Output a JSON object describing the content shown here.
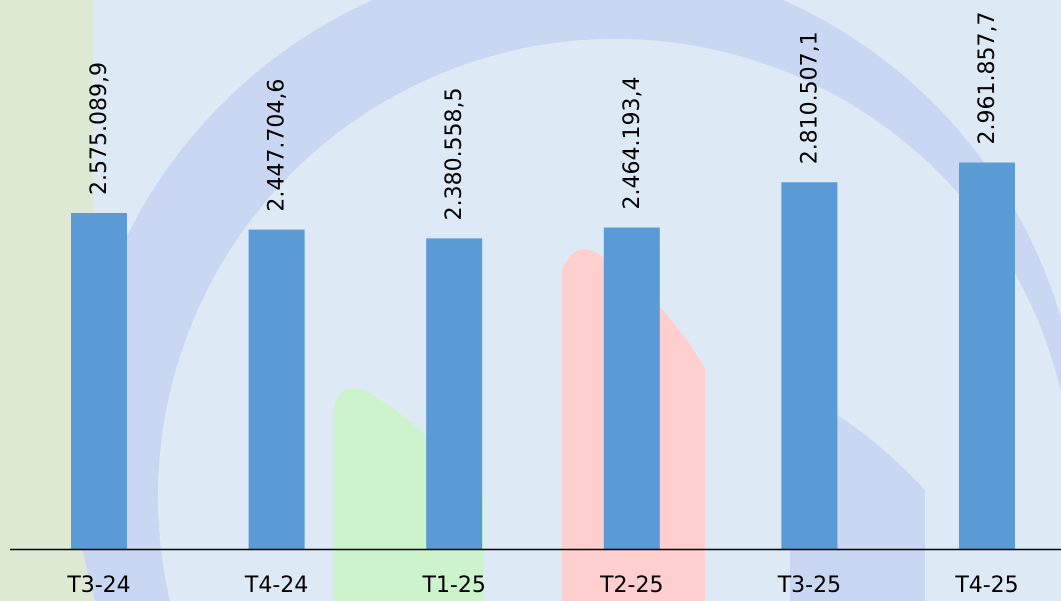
{
  "chart_data": {
    "type": "bar",
    "categories": [
      "T3-24",
      "T4-24",
      "T1-25",
      "T2-25",
      "T3-25",
      "T4-25"
    ],
    "values": [
      2575089.9,
      2447704.6,
      2380558.5,
      2464193.4,
      2810507.1,
      2961857.7
    ],
    "value_labels": [
      "2.575.089,9",
      "2.447.704,6",
      "2.380.558,5",
      "2.464.193,4",
      "2.810.507,1",
      "2.961.857,7"
    ],
    "ylim": [
      0,
      4444444
    ],
    "grid": false,
    "legend": "none",
    "title": "",
    "xlabel": "",
    "ylabel": ""
  },
  "colors": {
    "bar": "#5b9bd5",
    "axis": "#000000",
    "background": "#dde9f5",
    "decor_band": "#c9d7f3",
    "decor_green": "#cdf3cc",
    "decor_left": "#dde9d3",
    "decor_pink": "#ffcfcf"
  }
}
